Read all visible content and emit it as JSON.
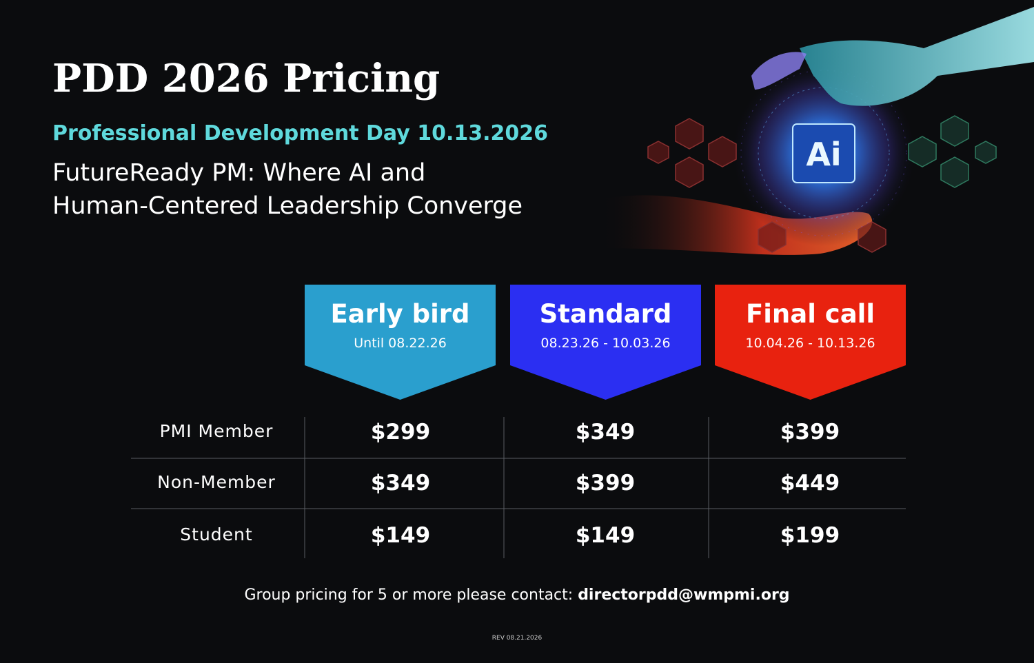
{
  "header": {
    "title": "PDD 2026 Pricing",
    "subtitle": "Professional Development Day 10.13.2026",
    "tagline": [
      "FutureReady PM: Where AI and",
      "Human-Centered Leadership Converge"
    ]
  },
  "hero": {
    "chip_label": "Ai"
  },
  "table": {
    "columns": [
      {
        "name": "Early bird",
        "dates": "Until 08.22.26"
      },
      {
        "name": "Standard",
        "dates": "08.23.26 - 10.03.26"
      },
      {
        "name": "Final call",
        "dates": "10.04.26 - 10.13.26"
      }
    ],
    "rows": [
      {
        "label": "PMI Member",
        "prices": [
          "$299",
          "$349",
          "$399"
        ]
      },
      {
        "label": "Non-Member",
        "prices": [
          "$349",
          "$399",
          "$449"
        ]
      },
      {
        "label": "Student",
        "prices": [
          "$149",
          "$149",
          "$199"
        ]
      }
    ]
  },
  "footer": {
    "note": "Group pricing for 5 or more please contact: ",
    "email": "directorpdd@wmpmi.org",
    "revision": "REV 08.21.2026"
  }
}
